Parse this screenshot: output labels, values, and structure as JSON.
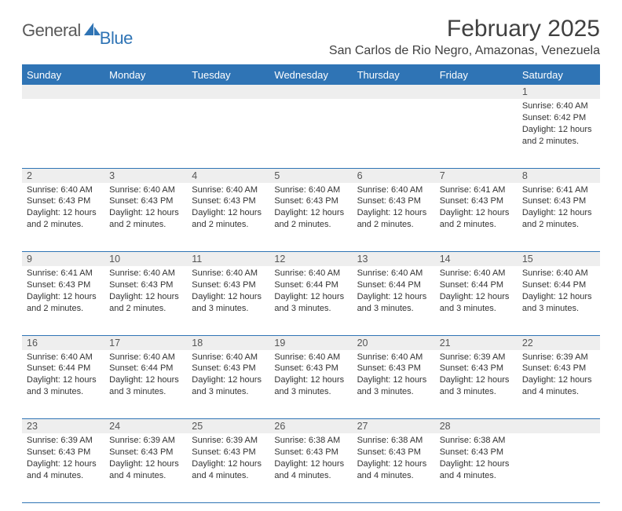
{
  "logo": {
    "general": "General",
    "blue": "Blue"
  },
  "header": {
    "title": "February 2025",
    "subtitle": "San Carlos de Rio Negro, Amazonas, Venezuela"
  },
  "colors": {
    "brand_blue": "#2f74b5",
    "header_row_bg": "#2f74b5",
    "daynum_bg": "#eeeeee",
    "text": "#333333",
    "border": "#2f74b5"
  },
  "weekdays": [
    "Sunday",
    "Monday",
    "Tuesday",
    "Wednesday",
    "Thursday",
    "Friday",
    "Saturday"
  ],
  "weeks": [
    {
      "days": [
        {
          "n": "",
          "sunrise": "",
          "sunset": "",
          "daylight": ""
        },
        {
          "n": "",
          "sunrise": "",
          "sunset": "",
          "daylight": ""
        },
        {
          "n": "",
          "sunrise": "",
          "sunset": "",
          "daylight": ""
        },
        {
          "n": "",
          "sunrise": "",
          "sunset": "",
          "daylight": ""
        },
        {
          "n": "",
          "sunrise": "",
          "sunset": "",
          "daylight": ""
        },
        {
          "n": "",
          "sunrise": "",
          "sunset": "",
          "daylight": ""
        },
        {
          "n": "1",
          "sunrise": "Sunrise: 6:40 AM",
          "sunset": "Sunset: 6:42 PM",
          "daylight": "Daylight: 12 hours and 2 minutes."
        }
      ]
    },
    {
      "days": [
        {
          "n": "2",
          "sunrise": "Sunrise: 6:40 AM",
          "sunset": "Sunset: 6:43 PM",
          "daylight": "Daylight: 12 hours and 2 minutes."
        },
        {
          "n": "3",
          "sunrise": "Sunrise: 6:40 AM",
          "sunset": "Sunset: 6:43 PM",
          "daylight": "Daylight: 12 hours and 2 minutes."
        },
        {
          "n": "4",
          "sunrise": "Sunrise: 6:40 AM",
          "sunset": "Sunset: 6:43 PM",
          "daylight": "Daylight: 12 hours and 2 minutes."
        },
        {
          "n": "5",
          "sunrise": "Sunrise: 6:40 AM",
          "sunset": "Sunset: 6:43 PM",
          "daylight": "Daylight: 12 hours and 2 minutes."
        },
        {
          "n": "6",
          "sunrise": "Sunrise: 6:40 AM",
          "sunset": "Sunset: 6:43 PM",
          "daylight": "Daylight: 12 hours and 2 minutes."
        },
        {
          "n": "7",
          "sunrise": "Sunrise: 6:41 AM",
          "sunset": "Sunset: 6:43 PM",
          "daylight": "Daylight: 12 hours and 2 minutes."
        },
        {
          "n": "8",
          "sunrise": "Sunrise: 6:41 AM",
          "sunset": "Sunset: 6:43 PM",
          "daylight": "Daylight: 12 hours and 2 minutes."
        }
      ]
    },
    {
      "days": [
        {
          "n": "9",
          "sunrise": "Sunrise: 6:41 AM",
          "sunset": "Sunset: 6:43 PM",
          "daylight": "Daylight: 12 hours and 2 minutes."
        },
        {
          "n": "10",
          "sunrise": "Sunrise: 6:40 AM",
          "sunset": "Sunset: 6:43 PM",
          "daylight": "Daylight: 12 hours and 2 minutes."
        },
        {
          "n": "11",
          "sunrise": "Sunrise: 6:40 AM",
          "sunset": "Sunset: 6:43 PM",
          "daylight": "Daylight: 12 hours and 3 minutes."
        },
        {
          "n": "12",
          "sunrise": "Sunrise: 6:40 AM",
          "sunset": "Sunset: 6:44 PM",
          "daylight": "Daylight: 12 hours and 3 minutes."
        },
        {
          "n": "13",
          "sunrise": "Sunrise: 6:40 AM",
          "sunset": "Sunset: 6:44 PM",
          "daylight": "Daylight: 12 hours and 3 minutes."
        },
        {
          "n": "14",
          "sunrise": "Sunrise: 6:40 AM",
          "sunset": "Sunset: 6:44 PM",
          "daylight": "Daylight: 12 hours and 3 minutes."
        },
        {
          "n": "15",
          "sunrise": "Sunrise: 6:40 AM",
          "sunset": "Sunset: 6:44 PM",
          "daylight": "Daylight: 12 hours and 3 minutes."
        }
      ]
    },
    {
      "days": [
        {
          "n": "16",
          "sunrise": "Sunrise: 6:40 AM",
          "sunset": "Sunset: 6:44 PM",
          "daylight": "Daylight: 12 hours and 3 minutes."
        },
        {
          "n": "17",
          "sunrise": "Sunrise: 6:40 AM",
          "sunset": "Sunset: 6:44 PM",
          "daylight": "Daylight: 12 hours and 3 minutes."
        },
        {
          "n": "18",
          "sunrise": "Sunrise: 6:40 AM",
          "sunset": "Sunset: 6:43 PM",
          "daylight": "Daylight: 12 hours and 3 minutes."
        },
        {
          "n": "19",
          "sunrise": "Sunrise: 6:40 AM",
          "sunset": "Sunset: 6:43 PM",
          "daylight": "Daylight: 12 hours and 3 minutes."
        },
        {
          "n": "20",
          "sunrise": "Sunrise: 6:40 AM",
          "sunset": "Sunset: 6:43 PM",
          "daylight": "Daylight: 12 hours and 3 minutes."
        },
        {
          "n": "21",
          "sunrise": "Sunrise: 6:39 AM",
          "sunset": "Sunset: 6:43 PM",
          "daylight": "Daylight: 12 hours and 3 minutes."
        },
        {
          "n": "22",
          "sunrise": "Sunrise: 6:39 AM",
          "sunset": "Sunset: 6:43 PM",
          "daylight": "Daylight: 12 hours and 4 minutes."
        }
      ]
    },
    {
      "days": [
        {
          "n": "23",
          "sunrise": "Sunrise: 6:39 AM",
          "sunset": "Sunset: 6:43 PM",
          "daylight": "Daylight: 12 hours and 4 minutes."
        },
        {
          "n": "24",
          "sunrise": "Sunrise: 6:39 AM",
          "sunset": "Sunset: 6:43 PM",
          "daylight": "Daylight: 12 hours and 4 minutes."
        },
        {
          "n": "25",
          "sunrise": "Sunrise: 6:39 AM",
          "sunset": "Sunset: 6:43 PM",
          "daylight": "Daylight: 12 hours and 4 minutes."
        },
        {
          "n": "26",
          "sunrise": "Sunrise: 6:38 AM",
          "sunset": "Sunset: 6:43 PM",
          "daylight": "Daylight: 12 hours and 4 minutes."
        },
        {
          "n": "27",
          "sunrise": "Sunrise: 6:38 AM",
          "sunset": "Sunset: 6:43 PM",
          "daylight": "Daylight: 12 hours and 4 minutes."
        },
        {
          "n": "28",
          "sunrise": "Sunrise: 6:38 AM",
          "sunset": "Sunset: 6:43 PM",
          "daylight": "Daylight: 12 hours and 4 minutes."
        },
        {
          "n": "",
          "sunrise": "",
          "sunset": "",
          "daylight": ""
        }
      ]
    }
  ]
}
